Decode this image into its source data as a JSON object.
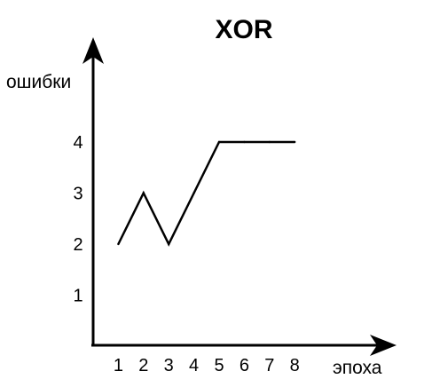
{
  "chart_data": {
    "type": "line",
    "title": "XOR",
    "xlabel": "эпоха",
    "ylabel": "ошибки",
    "x_ticks": [
      "1",
      "2",
      "3",
      "4",
      "5",
      "6",
      "7",
      "8"
    ],
    "y_ticks": [
      "1",
      "2",
      "3",
      "4"
    ],
    "x": [
      1,
      2,
      3,
      4,
      5,
      6,
      7,
      8
    ],
    "series": [
      {
        "values": [
          2,
          3,
          2,
          3,
          4,
          4,
          4,
          4
        ]
      }
    ],
    "xlim": [
      0,
      8
    ],
    "ylim": [
      0,
      4
    ],
    "grid": false,
    "line_color": "#000000",
    "axis_color": "#000000"
  }
}
